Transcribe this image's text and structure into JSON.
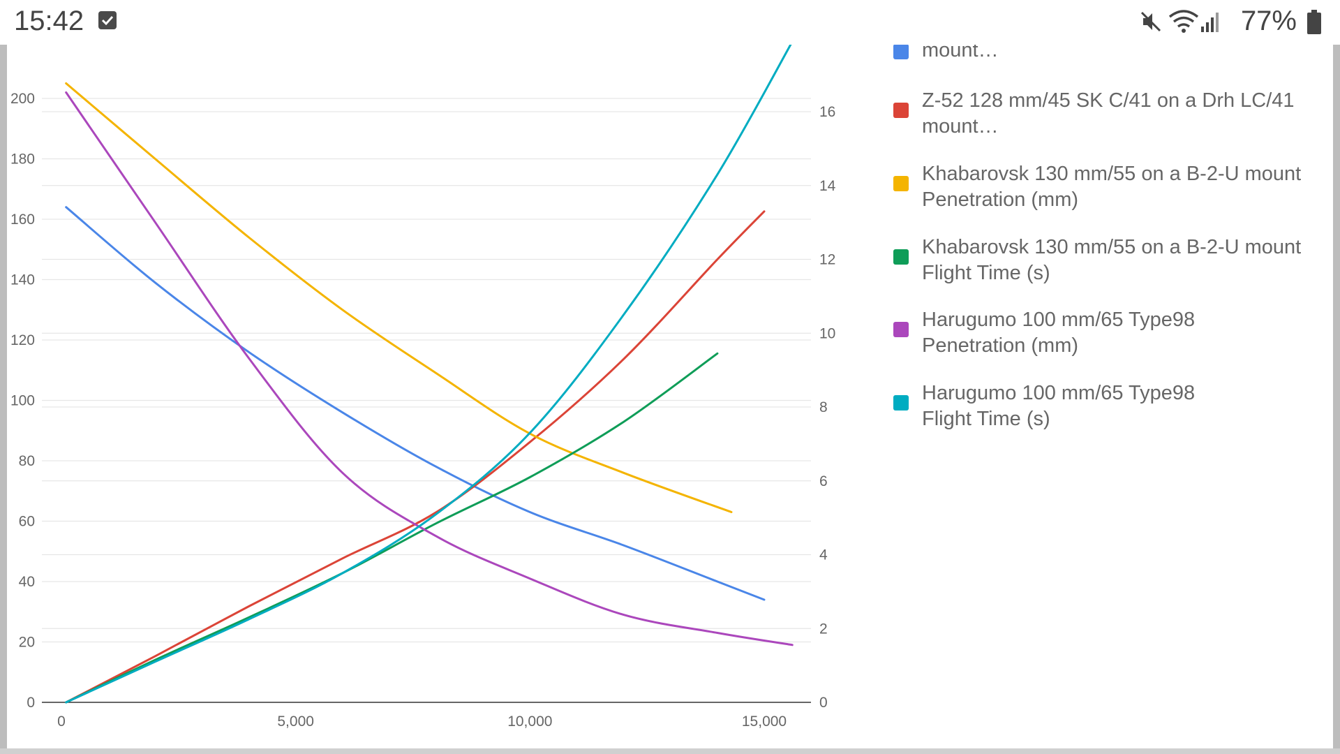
{
  "status_bar": {
    "time": "15:42",
    "notification_icon": "checkbox-icon",
    "icons": [
      "mute-icon",
      "wifi-icon",
      "signal-icon",
      "battery-icon"
    ],
    "battery_percent": "77%"
  },
  "chart_data": {
    "type": "line",
    "x_ticks": [
      "0",
      "5,000",
      "10,000",
      "15,000"
    ],
    "xlim": [
      0,
      16000
    ],
    "left_axis": {
      "ticks": [
        "0",
        "20",
        "40",
        "60",
        "80",
        "100",
        "120",
        "140",
        "160",
        "180",
        "200"
      ],
      "ylim": [
        0,
        200
      ]
    },
    "right_axis": {
      "ticks": [
        "0",
        "2",
        "4",
        "6",
        "8",
        "10",
        "12",
        "14",
        "16"
      ],
      "ylim": [
        0,
        16
      ]
    },
    "grid": true,
    "legend_position": "right",
    "series": [
      {
        "name": "mount…",
        "axis": "left",
        "color": "#4a86e8",
        "points": [
          [
            100,
            164
          ],
          [
            2000,
            139
          ],
          [
            4000,
            116
          ],
          [
            6000,
            96
          ],
          [
            8000,
            78
          ],
          [
            10000,
            63
          ],
          [
            12000,
            52
          ],
          [
            14000,
            40
          ],
          [
            15000,
            34
          ]
        ]
      },
      {
        "name": "Z-52 128 mm/45 SK C/41 on a Drh LC/41\nmount…",
        "axis": "right",
        "color": "#db4437",
        "points": [
          [
            100,
            0
          ],
          [
            2000,
            1.25
          ],
          [
            4000,
            2.6
          ],
          [
            6000,
            3.9
          ],
          [
            8000,
            5.15
          ],
          [
            10000,
            7.05
          ],
          [
            12000,
            9.3
          ],
          [
            14000,
            12.0
          ],
          [
            15000,
            13.3
          ]
        ]
      },
      {
        "name": "Khabarovsk 130 mm/55 on a B-2-U mount\nPenetration (mm)",
        "axis": "left",
        "color": "#f4b400",
        "points": [
          [
            100,
            205
          ],
          [
            2000,
            180
          ],
          [
            4000,
            154
          ],
          [
            6000,
            130
          ],
          [
            8000,
            109
          ],
          [
            10000,
            89
          ],
          [
            12000,
            76
          ],
          [
            14300,
            63
          ]
        ]
      },
      {
        "name": "Khabarovsk 130 mm/55 on a B-2-U mount\nFlight Time (s)",
        "axis": "right",
        "color": "#0f9d58",
        "points": [
          [
            100,
            0
          ],
          [
            2000,
            1.15
          ],
          [
            4000,
            2.3
          ],
          [
            6000,
            3.5
          ],
          [
            8000,
            4.85
          ],
          [
            10000,
            6.1
          ],
          [
            12000,
            7.6
          ],
          [
            14000,
            9.45
          ]
        ]
      },
      {
        "name": "Harugumo 100 mm/65 Type98\nPenetration (mm)",
        "axis": "left",
        "color": "#ab47bc",
        "points": [
          [
            100,
            202
          ],
          [
            2000,
            159
          ],
          [
            4000,
            114
          ],
          [
            6000,
            76
          ],
          [
            8000,
            55
          ],
          [
            10000,
            41
          ],
          [
            12000,
            29
          ],
          [
            14000,
            23
          ],
          [
            15600,
            19
          ]
        ]
      },
      {
        "name": "Harugumo 100 mm/65 Type98\nFlight Time (s)",
        "axis": "right",
        "color": "#00acc1",
        "points": [
          [
            100,
            0
          ],
          [
            2000,
            1.1
          ],
          [
            4000,
            2.25
          ],
          [
            6000,
            3.5
          ],
          [
            8000,
            5.1
          ],
          [
            10000,
            7.3
          ],
          [
            12000,
            10.5
          ],
          [
            14000,
            14.3
          ],
          [
            15600,
            17.9
          ]
        ]
      }
    ]
  }
}
